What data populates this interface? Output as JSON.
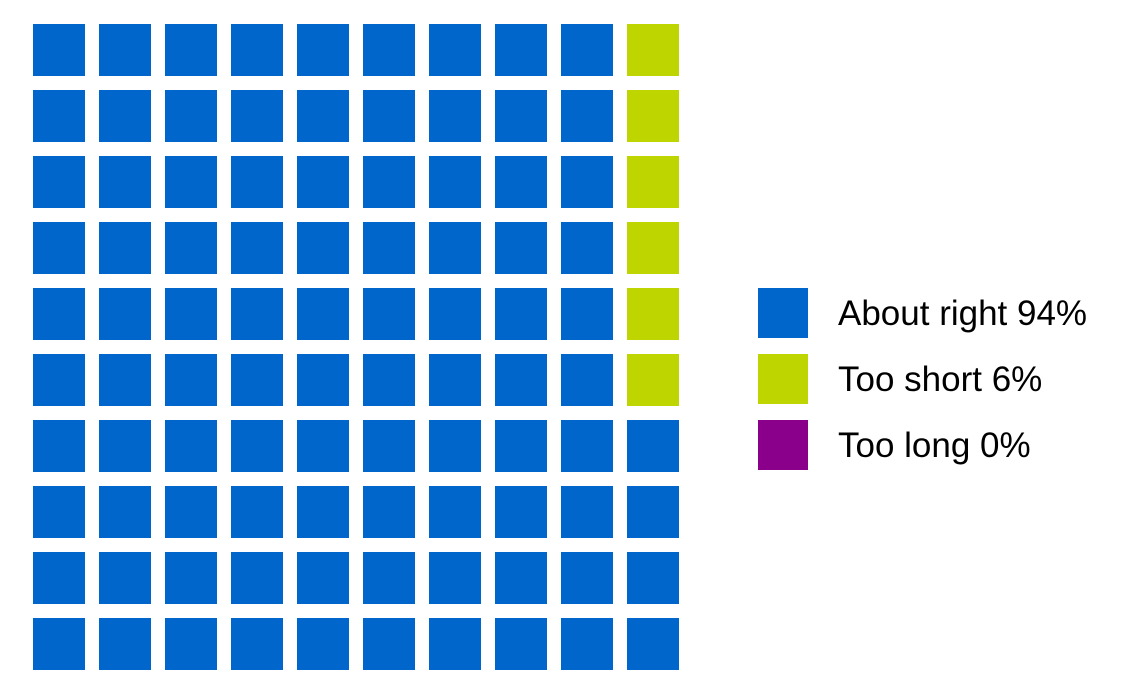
{
  "chart_data": {
    "type": "waffle",
    "title": "",
    "grid": {
      "rows": 10,
      "cols": 10,
      "cell_unit_pct": 1
    },
    "fill_order": "column-major, bottom-to-top, left-to-right",
    "legend_position": "right",
    "background_color": "#FFFFFF",
    "text_color": "#000000",
    "series": [
      {
        "name": "About right",
        "value_pct": 94,
        "color": "#0066CC",
        "label": "About right 94%"
      },
      {
        "name": "Too short",
        "value_pct": 6,
        "color": "#BED500",
        "label": "Too short 6%"
      },
      {
        "name": "Too long",
        "value_pct": 0,
        "color": "#8B008B",
        "label": "Too long 0%"
      }
    ]
  }
}
